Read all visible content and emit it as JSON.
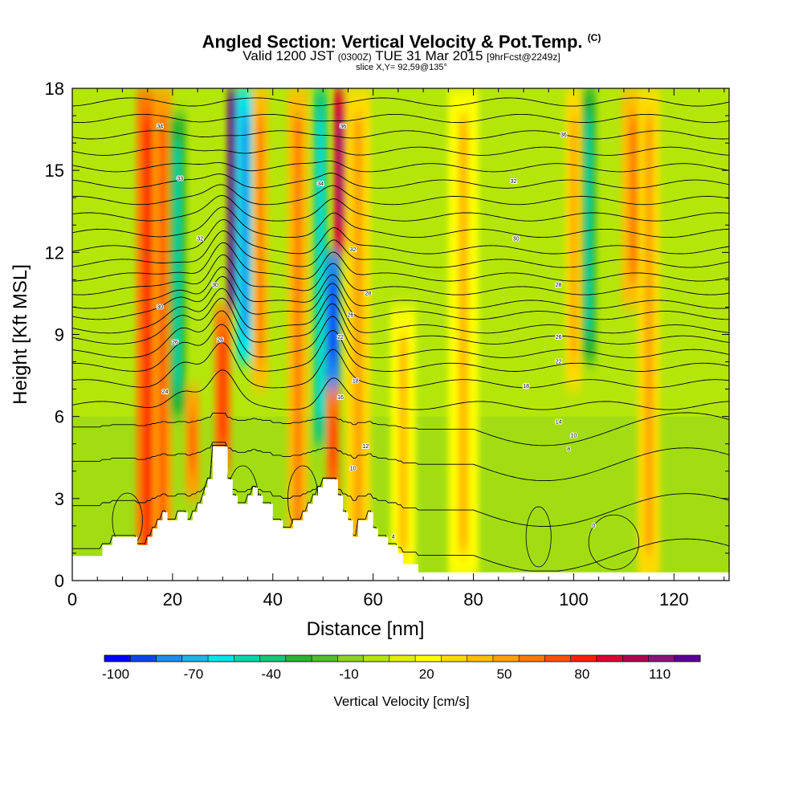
{
  "title": "Angled Section: Vertical Velocity & Pot.Temp.",
  "title_mark": "(C)",
  "subtitle_pre": "Valid 1200 JST",
  "subtitle_utc": "(0300Z)",
  "subtitle_main": "TUE 31 Mar 2015",
  "subtitle_fcst": "[9hrFcst@2249z]",
  "slice_info": "slice X,Y= 92,59@135°",
  "chart_data": {
    "type": "heatmap",
    "xlabel": "Distance [nm]",
    "ylabel": "Height [Kft MSL]",
    "xlim": [
      0,
      131
    ],
    "ylim": [
      0,
      18
    ],
    "x_ticks": [
      "0",
      "20",
      "40",
      "60",
      "80",
      "100",
      "120"
    ],
    "y_ticks": [
      "0",
      "3",
      "6",
      "9",
      "12",
      "15",
      "18"
    ],
    "colorbar": {
      "label": "Vertical Velocity [cm/s]",
      "tick_labels": [
        "-100",
        "-70",
        "-40",
        "-10",
        "20",
        "50",
        "80",
        "110"
      ],
      "levels": [
        -100,
        -90,
        -80,
        -70,
        -60,
        -50,
        -40,
        -30,
        -20,
        -10,
        0,
        10,
        20,
        30,
        40,
        50,
        60,
        70,
        80,
        90,
        100,
        110,
        120
      ],
      "colors": [
        "#0000ff",
        "#0a46f0",
        "#1e8cf0",
        "#1eb4ea",
        "#00e6e6",
        "#00d7aa",
        "#14c878",
        "#28b432",
        "#50be28",
        "#8cd21e",
        "#b4e60a",
        "#e1f000",
        "#ffff00",
        "#ffdc00",
        "#ffbe00",
        "#ffa000",
        "#ff7800",
        "#ff5000",
        "#ff1e00",
        "#dc0032",
        "#b40050",
        "#8c1478",
        "#5a0096"
      ]
    },
    "columns": [
      {
        "x": 15,
        "w": 2.2,
        "v": 55,
        "z0": 0,
        "z1": 18
      },
      {
        "x": 18,
        "w": 1.8,
        "v": 45,
        "z0": 0,
        "z1": 18
      },
      {
        "x": 21,
        "w": 1.6,
        "v": -35,
        "z0": 6,
        "z1": 17
      },
      {
        "x": 24,
        "w": 1.4,
        "v": 45,
        "z0": 3,
        "z1": 7
      },
      {
        "x": 30,
        "w": 1.6,
        "v": 60,
        "z0": 4,
        "z1": 10
      },
      {
        "x": 32.5,
        "w": 1.5,
        "v": 115,
        "z0": 10,
        "z1": 18
      },
      {
        "x": 34.5,
        "w": 1.8,
        "v": -60,
        "z0": 8,
        "z1": 18
      },
      {
        "x": 37.5,
        "w": 1.6,
        "v": 40,
        "z0": 7,
        "z1": 18
      },
      {
        "x": 45,
        "w": 2.0,
        "v": 35,
        "z0": 0,
        "z1": 18
      },
      {
        "x": 49.5,
        "w": 1.4,
        "v": -40,
        "z0": 5,
        "z1": 18
      },
      {
        "x": 52,
        "w": 1.4,
        "v": -85,
        "z0": 7,
        "z1": 12
      },
      {
        "x": 52,
        "w": 1.3,
        "v": 60,
        "z0": 3,
        "z1": 7
      },
      {
        "x": 53.5,
        "w": 1.3,
        "v": 85,
        "z0": 12,
        "z1": 18
      },
      {
        "x": 57,
        "w": 2.5,
        "v": 25,
        "z0": 0,
        "z1": 18
      },
      {
        "x": 66,
        "w": 2.5,
        "v": 20,
        "z0": 0,
        "z1": 10
      },
      {
        "x": 78,
        "w": 3,
        "v": 22,
        "z0": 0,
        "z1": 18
      },
      {
        "x": 100,
        "w": 1.6,
        "v": 25,
        "z0": 7,
        "z1": 18
      },
      {
        "x": 103,
        "w": 1.4,
        "v": -30,
        "z0": 8,
        "z1": 18
      },
      {
        "x": 112,
        "w": 2.4,
        "v": 40,
        "z0": 10,
        "z1": 18
      },
      {
        "x": 115,
        "w": 2.2,
        "v": 25,
        "z0": 0,
        "z1": 18
      }
    ],
    "isentropes": {
      "levels_kft": [
        0.8,
        2.5,
        4.2,
        5.5,
        6.4,
        7.2,
        7.8,
        8.3,
        8.8,
        9.2,
        9.7,
        10.1,
        10.6,
        11.1,
        11.6,
        12.1,
        12.7,
        13.3,
        13.9,
        14.5,
        15.1,
        15.7,
        16.3,
        16.9,
        17.5
      ],
      "labels": [
        {
          "text": "34",
          "x": 17.5,
          "z": 16.6
        },
        {
          "text": "33",
          "x": 21.5,
          "z": 14.7
        },
        {
          "text": "32",
          "x": 25.5,
          "z": 12.5
        },
        {
          "text": "30",
          "x": 28.5,
          "z": 10.8
        },
        {
          "text": "30",
          "x": 17.5,
          "z": 10.0
        },
        {
          "text": "26",
          "x": 20.5,
          "z": 8.7
        },
        {
          "text": "26",
          "x": 29.5,
          "z": 8.8
        },
        {
          "text": "24",
          "x": 18.5,
          "z": 6.9
        },
        {
          "text": "36",
          "x": 54,
          "z": 16.6
        },
        {
          "text": "34",
          "x": 49.5,
          "z": 14.5
        },
        {
          "text": "32",
          "x": 56,
          "z": 12.1
        },
        {
          "text": "28",
          "x": 59,
          "z": 10.5
        },
        {
          "text": "26",
          "x": 55.5,
          "z": 9.7
        },
        {
          "text": "22",
          "x": 53.5,
          "z": 8.9
        },
        {
          "text": "18",
          "x": 56.5,
          "z": 7.3
        },
        {
          "text": "16",
          "x": 53.5,
          "z": 6.7
        },
        {
          "text": "12",
          "x": 58.5,
          "z": 4.9
        },
        {
          "text": "10",
          "x": 56,
          "z": 4.1
        },
        {
          "text": "36",
          "x": 98,
          "z": 16.3
        },
        {
          "text": "32",
          "x": 88,
          "z": 14.6
        },
        {
          "text": "30",
          "x": 88.5,
          "z": 12.5
        },
        {
          "text": "28",
          "x": 97,
          "z": 10.8
        },
        {
          "text": "26",
          "x": 97,
          "z": 8.9
        },
        {
          "text": "22",
          "x": 97,
          "z": 8.0
        },
        {
          "text": "18",
          "x": 90.5,
          "z": 7.1
        },
        {
          "text": "14",
          "x": 97,
          "z": 5.8
        },
        {
          "text": "10",
          "x": 100,
          "z": 5.3
        },
        {
          "text": "8",
          "x": 99,
          "z": 4.8
        },
        {
          "text": "4",
          "x": 64,
          "z": 1.6
        },
        {
          "text": "0",
          "x": 104,
          "z": 2.0
        }
      ]
    },
    "terrain": [
      [
        0,
        0.9
      ],
      [
        6,
        0.9
      ],
      [
        6,
        1.3
      ],
      [
        8,
        1.3
      ],
      [
        8,
        1.6
      ],
      [
        13,
        1.6
      ],
      [
        13,
        1.3
      ],
      [
        15,
        1.3
      ],
      [
        15,
        1.6
      ],
      [
        16,
        1.6
      ],
      [
        16,
        1.9
      ],
      [
        17,
        1.9
      ],
      [
        17,
        2.2
      ],
      [
        18,
        2.2
      ],
      [
        18,
        2.5
      ],
      [
        19,
        2.5
      ],
      [
        19,
        2.2
      ],
      [
        21,
        2.2
      ],
      [
        21,
        2.5
      ],
      [
        23,
        2.5
      ],
      [
        23,
        2.2
      ],
      [
        24,
        2.2
      ],
      [
        24,
        2.5
      ],
      [
        25,
        2.5
      ],
      [
        25,
        2.8
      ],
      [
        26,
        2.8
      ],
      [
        26,
        3.1
      ],
      [
        26.5,
        3.1
      ],
      [
        26.5,
        3.4
      ],
      [
        27,
        3.4
      ],
      [
        27,
        3.7
      ],
      [
        28,
        3.7
      ],
      [
        28,
        4.9
      ],
      [
        31,
        4.9
      ],
      [
        31,
        3.7
      ],
      [
        32,
        3.7
      ],
      [
        32,
        3.1
      ],
      [
        33,
        3.1
      ],
      [
        33,
        2.8
      ],
      [
        35,
        2.8
      ],
      [
        35,
        3.1
      ],
      [
        36,
        3.1
      ],
      [
        36,
        3.4
      ],
      [
        37,
        3.4
      ],
      [
        37,
        3.1
      ],
      [
        38,
        3.1
      ],
      [
        38,
        2.8
      ],
      [
        40,
        2.8
      ],
      [
        40,
        2.2
      ],
      [
        42,
        2.2
      ],
      [
        42,
        1.9
      ],
      [
        44,
        1.9
      ],
      [
        44,
        2.2
      ],
      [
        46,
        2.2
      ],
      [
        46,
        2.5
      ],
      [
        47,
        2.5
      ],
      [
        47,
        2.8
      ],
      [
        48,
        2.8
      ],
      [
        48,
        3.1
      ],
      [
        49,
        3.1
      ],
      [
        49,
        3.4
      ],
      [
        50,
        3.4
      ],
      [
        50,
        3.7
      ],
      [
        53,
        3.7
      ],
      [
        53,
        3.1
      ],
      [
        54,
        3.1
      ],
      [
        54,
        2.5
      ],
      [
        55,
        2.5
      ],
      [
        55,
        2.2
      ],
      [
        56,
        2.2
      ],
      [
        56,
        1.6
      ],
      [
        57,
        1.6
      ],
      [
        57,
        2.2
      ],
      [
        59,
        2.2
      ],
      [
        59,
        2.5
      ],
      [
        60,
        2.5
      ],
      [
        60,
        1.9
      ],
      [
        61,
        1.9
      ],
      [
        61,
        1.6
      ],
      [
        63,
        1.6
      ],
      [
        63,
        1.3
      ],
      [
        65,
        1.3
      ],
      [
        65,
        1.0
      ],
      [
        66,
        1.0
      ],
      [
        66,
        0.6
      ],
      [
        69,
        0.6
      ],
      [
        69,
        0.3
      ],
      [
        131,
        0.3
      ]
    ]
  }
}
